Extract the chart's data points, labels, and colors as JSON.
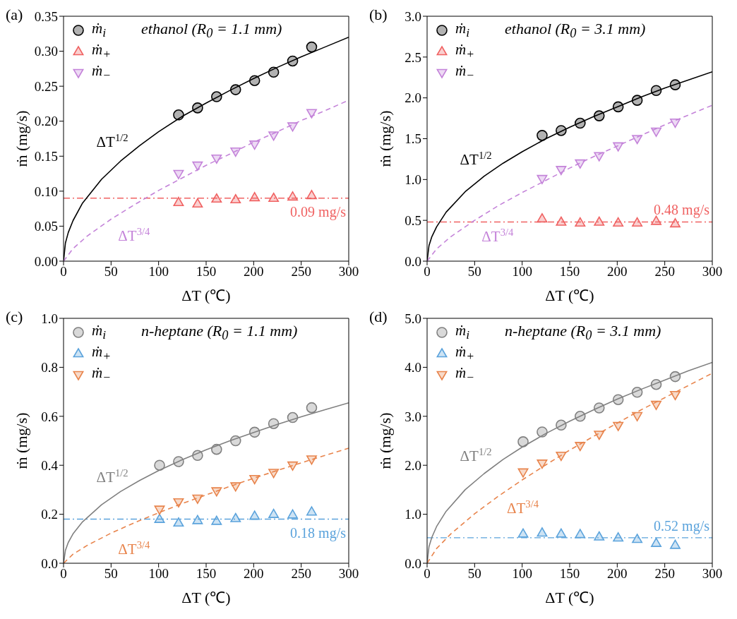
{
  "chart_data": [
    {
      "type": "scatter",
      "title": "(a)",
      "subtitle": "ethanol (R$_{0}$ = 1.1 mm)",
      "xlabel": "ΔT (℃)",
      "ylabel": "ṁ (mg/s)",
      "xlim": [
        0,
        300
      ],
      "xticks": [
        0,
        50,
        100,
        150,
        200,
        250,
        300
      ],
      "ylim": [
        0,
        0.35
      ],
      "yticks": [
        {
          "value": 0,
          "label": "0.00"
        },
        {
          "value": 0.05,
          "label": "0.05"
        },
        {
          "value": 0.1,
          "label": "0.10"
        },
        {
          "value": 0.15,
          "label": "0.15"
        },
        {
          "value": 0.2,
          "label": "0.20"
        },
        {
          "value": 0.25,
          "label": "0.25"
        },
        {
          "value": 0.3,
          "label": "0.30"
        },
        {
          "value": 0.35,
          "label": "0.35"
        }
      ],
      "legend": "top left",
      "x": [
        121,
        141,
        161,
        181,
        201,
        221,
        241,
        261
      ],
      "series": [
        {
          "name": "ṁ$_{i}$",
          "color": "#000000",
          "marker": "circle",
          "values": [
            0.209,
            0.219,
            0.235,
            0.245,
            0.258,
            0.27,
            0.286,
            0.306
          ]
        },
        {
          "name": "ṁ$_{+}$",
          "color": "#f06262",
          "marker": "triangle",
          "values": [
            0.084,
            0.082,
            0.089,
            0.088,
            0.091,
            0.09,
            0.092,
            0.094
          ]
        },
        {
          "name": "ṁ$_{−}$",
          "color": "#c483d9",
          "marker": "triangle-down",
          "values": [
            0.125,
            0.137,
            0.147,
            0.157,
            0.167,
            0.18,
            0.193,
            0.212
          ]
        },
        {
          "type": "line",
          "name": "ΔT$^{1/2}$",
          "color": "#000000",
          "line_style": "solid",
          "marker": "none",
          "x": [
            0,
            2,
            5,
            10,
            20,
            40,
            60,
            80,
            100,
            125,
            150,
            175,
            200,
            225,
            250,
            275,
            300
          ],
          "values": [
            0,
            0.026,
            0.041,
            0.058,
            0.083,
            0.117,
            0.143,
            0.165,
            0.185,
            0.207,
            0.226,
            0.244,
            0.261,
            0.277,
            0.292,
            0.306,
            0.32
          ]
        },
        {
          "type": "line",
          "name": "ΔT$^{3/4}$",
          "color": "#c483d9",
          "line_style": "dashed",
          "marker": "none",
          "x": [
            0,
            10,
            25,
            50,
            75,
            100,
            125,
            150,
            175,
            200,
            225,
            250,
            275,
            300
          ],
          "values": [
            0,
            0.018,
            0.036,
            0.06,
            0.081,
            0.101,
            0.119,
            0.137,
            0.153,
            0.17,
            0.185,
            0.201,
            0.215,
            0.23
          ]
        }
      ],
      "ref_lines": [
        {
          "axis": "y",
          "value": 0.09,
          "label": "0.09 mg/s",
          "color": "#f06262",
          "line_style": "dashdot"
        }
      ]
    },
    {
      "type": "scatter",
      "title": "(b)",
      "subtitle": "ethanol (R$_{0}$ = 3.1 mm)",
      "xlabel": "ΔT (℃)",
      "ylabel": "ṁ (mg/s)",
      "xlim": [
        0,
        300
      ],
      "xticks": [
        0,
        50,
        100,
        150,
        200,
        250,
        300
      ],
      "ylim": [
        0,
        3
      ],
      "yticks": [
        {
          "value": 0,
          "label": "0.0"
        },
        0.5,
        {
          "value": 1,
          "label": "1.0"
        },
        1.5,
        {
          "value": 2,
          "label": "2.0"
        },
        2.5,
        {
          "value": 3,
          "label": "3.0"
        }
      ],
      "legend": "top left",
      "x": [
        121,
        141,
        161,
        181,
        201,
        221,
        241,
        261
      ],
      "series": [
        {
          "name": "ṁ$_{i}$",
          "color": "#000000",
          "marker": "circle",
          "values": [
            1.54,
            1.6,
            1.69,
            1.78,
            1.89,
            1.97,
            2.09,
            2.16
          ]
        },
        {
          "name": "ṁ$_{+}$",
          "color": "#f06262",
          "marker": "triangle",
          "values": [
            0.52,
            0.48,
            0.47,
            0.48,
            0.47,
            0.47,
            0.49,
            0.46
          ]
        },
        {
          "name": "ṁ$_{−}$",
          "color": "#c483d9",
          "marker": "triangle-down",
          "values": [
            1.01,
            1.12,
            1.2,
            1.29,
            1.41,
            1.5,
            1.59,
            1.7
          ]
        },
        {
          "type": "line",
          "name": "ΔT$^{1/2}$",
          "color": "#000000",
          "line_style": "solid",
          "marker": "none",
          "x": [
            0,
            2,
            5,
            10,
            20,
            40,
            60,
            80,
            100,
            125,
            150,
            175,
            200,
            225,
            250,
            275,
            300
          ],
          "values": [
            0,
            0.19,
            0.3,
            0.42,
            0.6,
            0.85,
            1.04,
            1.2,
            1.34,
            1.5,
            1.64,
            1.77,
            1.89,
            2.01,
            2.12,
            2.22,
            2.32
          ]
        },
        {
          "type": "line",
          "name": "ΔT$^{3/4}$",
          "color": "#c483d9",
          "line_style": "dashed",
          "marker": "none",
          "x": [
            0,
            10,
            25,
            50,
            75,
            100,
            125,
            150,
            175,
            200,
            225,
            250,
            275,
            300
          ],
          "values": [
            0,
            0.15,
            0.3,
            0.5,
            0.68,
            0.84,
            0.99,
            1.14,
            1.28,
            1.41,
            1.54,
            1.67,
            1.79,
            1.91
          ]
        }
      ],
      "ref_lines": [
        {
          "axis": "y",
          "value": 0.48,
          "label": "0.48 mg/s",
          "color": "#f06262",
          "line_style": "dashdot"
        }
      ]
    },
    {
      "type": "scatter",
      "title": "(c)",
      "subtitle": "n-heptane (R$_{0}$ = 1.1 mm)",
      "xlabel": "ΔT (℃)",
      "ylabel": "ṁ (mg/s)",
      "xlim": [
        0,
        300
      ],
      "xticks": [
        0,
        50,
        100,
        150,
        200,
        250,
        300
      ],
      "ylim": [
        0,
        1
      ],
      "yticks": [
        {
          "value": 0,
          "label": "0.0"
        },
        0.2,
        0.4,
        0.6,
        0.8,
        {
          "value": 1,
          "label": "1.0"
        }
      ],
      "legend": "top left",
      "x": [
        101,
        121,
        141,
        161,
        181,
        201,
        221,
        241,
        261
      ],
      "series": [
        {
          "name": "ṁ$_{i}$",
          "color": "#808080",
          "marker": "circle",
          "values": [
            0.4,
            0.415,
            0.44,
            0.465,
            0.5,
            0.535,
            0.57,
            0.595,
            0.635
          ]
        },
        {
          "name": "ṁ$_{+}$",
          "color": "#5ba3dc",
          "marker": "triangle",
          "values": [
            0.18,
            0.165,
            0.175,
            0.172,
            0.183,
            0.193,
            0.2,
            0.198,
            0.21
          ]
        },
        {
          "name": "ṁ$_{−}$",
          "color": "#e8844c",
          "marker": "triangle-down",
          "values": [
            0.22,
            0.25,
            0.265,
            0.295,
            0.315,
            0.345,
            0.37,
            0.4,
            0.425
          ]
        },
        {
          "type": "line",
          "name": "ΔT$^{1/2}$",
          "color": "#808080",
          "line_style": "solid",
          "marker": "none",
          "x": [
            0,
            2,
            5,
            10,
            20,
            40,
            60,
            80,
            100,
            125,
            150,
            175,
            200,
            225,
            250,
            275,
            300
          ],
          "values": [
            0,
            0.053,
            0.085,
            0.12,
            0.169,
            0.239,
            0.293,
            0.338,
            0.378,
            0.423,
            0.463,
            0.5,
            0.534,
            0.567,
            0.598,
            0.627,
            0.655
          ]
        },
        {
          "type": "line",
          "name": "ΔT$^{3/4}$",
          "color": "#e8844c",
          "line_style": "dashed",
          "marker": "none",
          "x": [
            0,
            10,
            25,
            50,
            75,
            100,
            125,
            150,
            175,
            200,
            225,
            250,
            275,
            300
          ],
          "values": [
            0,
            0.037,
            0.073,
            0.123,
            0.166,
            0.206,
            0.244,
            0.279,
            0.314,
            0.347,
            0.379,
            0.41,
            0.44,
            0.47
          ]
        }
      ],
      "ref_lines": [
        {
          "axis": "y",
          "value": 0.18,
          "label": "0.18 mg/s",
          "color": "#5ba3dc",
          "line_style": "dashdot"
        }
      ]
    },
    {
      "type": "scatter",
      "title": "(d)",
      "subtitle": "n-heptane (R$_{0}$ = 3.1 mm)",
      "xlabel": "ΔT (℃)",
      "ylabel": "ṁ (mg/s)",
      "xlim": [
        0,
        300
      ],
      "xticks": [
        0,
        50,
        100,
        150,
        200,
        250,
        300
      ],
      "ylim": [
        0,
        5
      ],
      "yticks": [
        {
          "value": 0,
          "label": "0.0"
        },
        {
          "value": 1,
          "label": "1.0"
        },
        {
          "value": 2,
          "label": "2.0"
        },
        {
          "value": 3,
          "label": "3.0"
        },
        {
          "value": 4,
          "label": "4.0"
        },
        {
          "value": 5,
          "label": "5.0"
        }
      ],
      "legend": "top left",
      "x": [
        101,
        121,
        141,
        161,
        181,
        201,
        221,
        241,
        261
      ],
      "series": [
        {
          "name": "ṁ$_{i}$",
          "color": "#808080",
          "marker": "circle",
          "values": [
            2.48,
            2.68,
            2.82,
            3.0,
            3.17,
            3.34,
            3.49,
            3.65,
            3.81
          ]
        },
        {
          "name": "ṁ$_{+}$",
          "color": "#5ba3dc",
          "marker": "triangle",
          "values": [
            0.6,
            0.62,
            0.6,
            0.59,
            0.54,
            0.52,
            0.49,
            0.41,
            0.37
          ]
        },
        {
          "name": "ṁ$_{−}$",
          "color": "#e8844c",
          "marker": "triangle-down",
          "values": [
            1.86,
            2.04,
            2.2,
            2.4,
            2.63,
            2.81,
            3.01,
            3.24,
            3.44
          ]
        },
        {
          "type": "line",
          "name": "ΔT$^{1/2}$",
          "color": "#808080",
          "line_style": "solid",
          "marker": "none",
          "x": [
            0,
            2,
            5,
            10,
            20,
            40,
            60,
            80,
            100,
            125,
            150,
            175,
            200,
            225,
            250,
            275,
            300
          ],
          "values": [
            0,
            0.34,
            0.53,
            0.75,
            1.06,
            1.5,
            1.83,
            2.12,
            2.37,
            2.65,
            2.9,
            3.13,
            3.35,
            3.55,
            3.74,
            3.93,
            4.1
          ]
        },
        {
          "type": "line",
          "name": "ΔT$^{3/4}$",
          "color": "#e8844c",
          "line_style": "dashed",
          "marker": "none",
          "x": [
            0,
            10,
            25,
            50,
            75,
            100,
            125,
            150,
            175,
            200,
            225,
            250,
            275,
            300
          ],
          "values": [
            0,
            0.3,
            0.6,
            1.01,
            1.37,
            1.7,
            2.01,
            2.31,
            2.59,
            2.86,
            3.13,
            3.38,
            3.63,
            3.88
          ]
        }
      ],
      "ref_lines": [
        {
          "axis": "y",
          "value": 0.52,
          "label": "0.52 mg/s",
          "color": "#5ba3dc",
          "line_style": "dashdot"
        }
      ]
    }
  ]
}
